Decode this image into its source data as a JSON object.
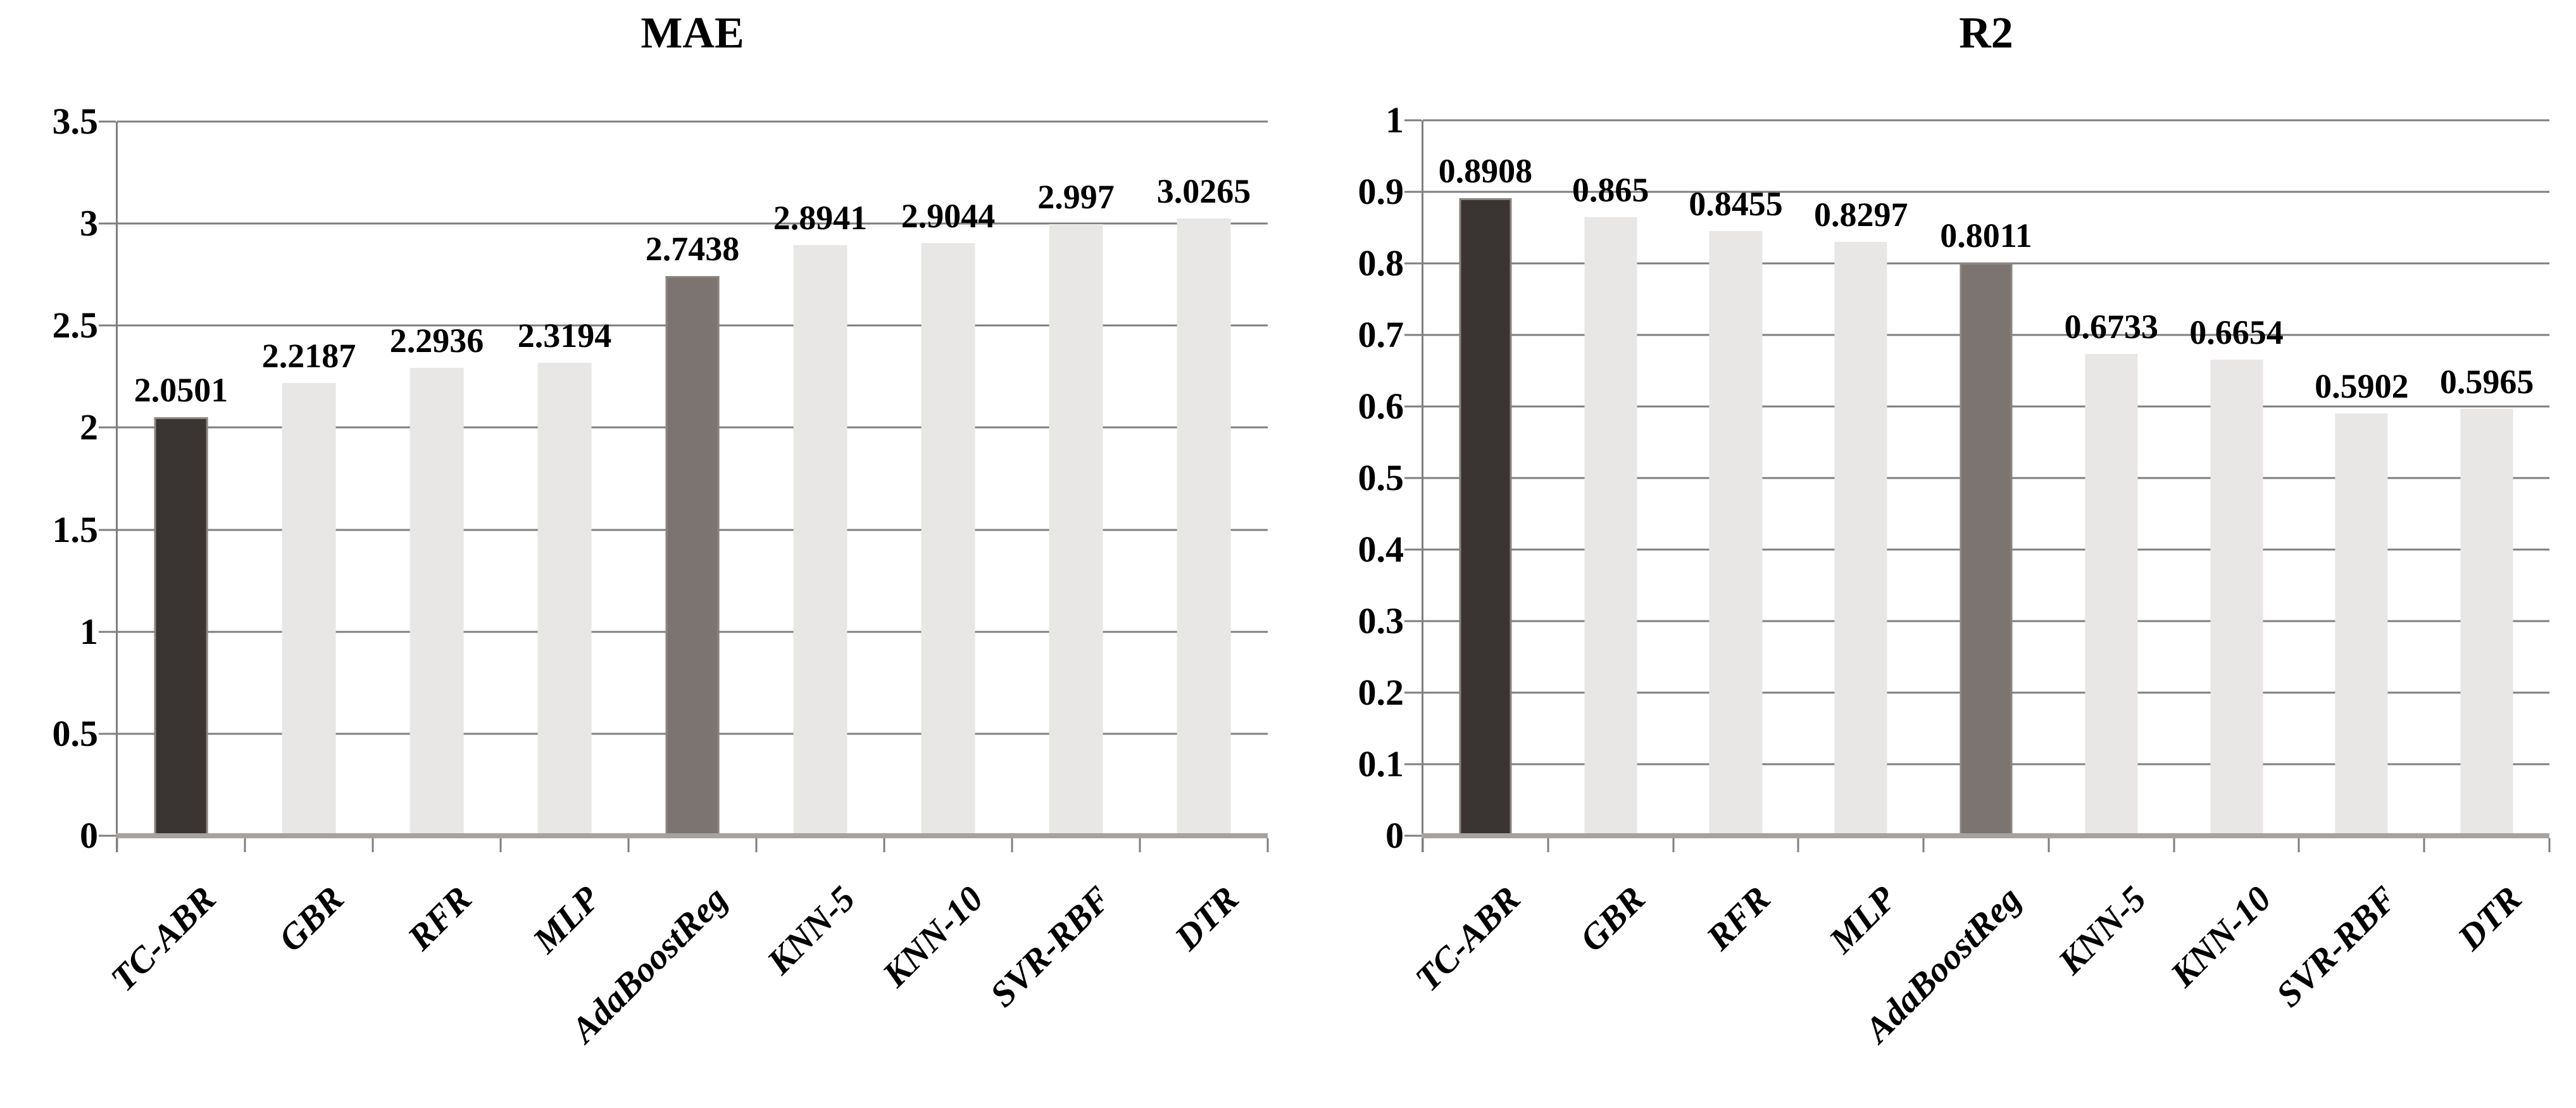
{
  "figure": {
    "background": "#ffffff",
    "text_color": "#000000",
    "grid_color": "#7f7f7f",
    "axis_band_color": "#a6a29f",
    "bar_border_color": "#8b8580",
    "bar_colors": {
      "highlight": "#3a3532",
      "secondary": "#7b7471",
      "default": "#e8e7e6"
    }
  },
  "chart_data": [
    {
      "type": "bar",
      "title": "MAE",
      "xlabel": "",
      "ylabel": "",
      "categories": [
        "TC-ABR",
        "GBR",
        "RFR",
        "MLP",
        "AdaBoostReg",
        "KNN-5",
        "KNN-10",
        "SVR-RBF",
        "DTR"
      ],
      "values": [
        2.0501,
        2.2187,
        2.2936,
        2.3194,
        2.7438,
        2.8941,
        2.9044,
        2.997,
        3.0265
      ],
      "value_labels": [
        "2.0501",
        "2.2187",
        "2.2936",
        "2.3194",
        "2.7438",
        "2.8941",
        "2.9044",
        "2.997",
        "3.0265"
      ],
      "bar_styles": [
        "highlight",
        "default",
        "default",
        "default",
        "secondary",
        "default",
        "default",
        "default",
        "default"
      ],
      "ylim": [
        0,
        3.5
      ],
      "yticks": [
        "0",
        "0.5",
        "1",
        "1.5",
        "2",
        "2.5",
        "3",
        "3.5"
      ],
      "grid": true,
      "legend": "none"
    },
    {
      "type": "bar",
      "title": "R2",
      "xlabel": "",
      "ylabel": "",
      "categories": [
        "TC-ABR",
        "GBR",
        "RFR",
        "MLP",
        "AdaBoostReg",
        "KNN-5",
        "KNN-10",
        "SVR-RBF",
        "DTR"
      ],
      "values": [
        0.8908,
        0.865,
        0.8455,
        0.8297,
        0.8011,
        0.6733,
        0.6654,
        0.5902,
        0.5965
      ],
      "value_labels": [
        "0.8908",
        "0.865",
        "0.8455",
        "0.8297",
        "0.8011",
        "0.6733",
        "0.6654",
        "0.5902",
        "0.5965"
      ],
      "bar_styles": [
        "highlight",
        "default",
        "default",
        "default",
        "secondary",
        "default",
        "default",
        "default",
        "default"
      ],
      "ylim": [
        0,
        1
      ],
      "yticks": [
        "0",
        "0.1",
        "0.2",
        "0.3",
        "0.4",
        "0.5",
        "0.6",
        "0.7",
        "0.8",
        "0.9",
        "1"
      ],
      "grid": true,
      "legend": "none"
    }
  ]
}
